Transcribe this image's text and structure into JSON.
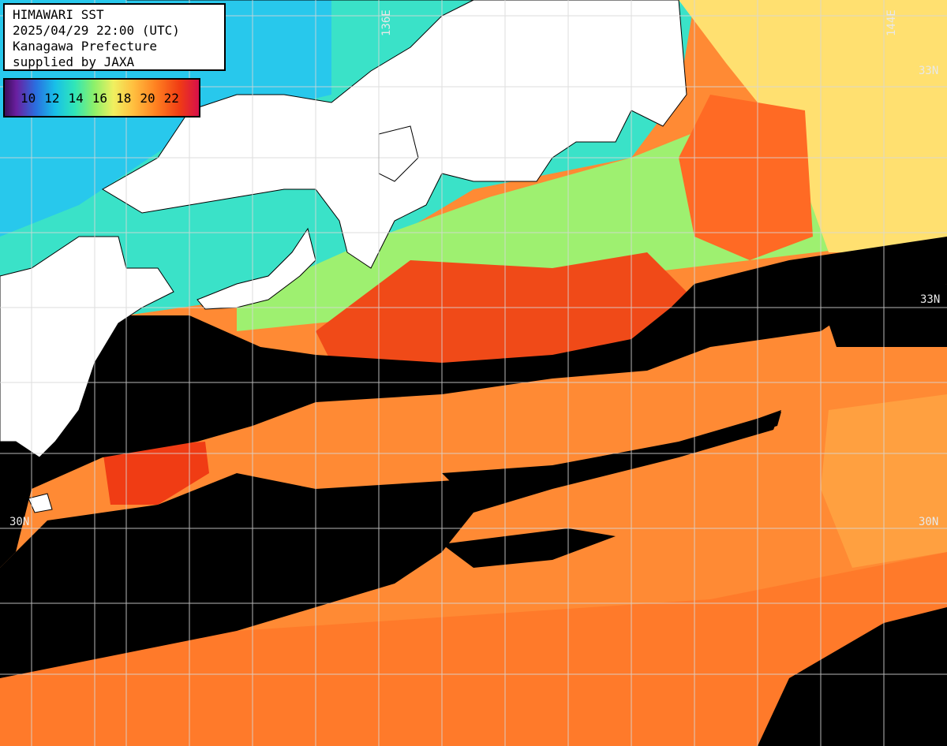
{
  "info": {
    "title": "HIMAWARI SST",
    "datetime": "2025/04/29 22:00 (UTC)",
    "prefecture": "Kanagawa Prefecture",
    "supplier": "supplied by JAXA"
  },
  "legend": {
    "ticks": [
      "10",
      "12",
      "14",
      "16",
      "18",
      "20",
      "22"
    ]
  },
  "grid": {
    "lon_labels": [
      "136E",
      "144E"
    ],
    "lat_labels": [
      "33N",
      "33N",
      "30N",
      "30N"
    ]
  },
  "colors": {
    "land": "#ffffff",
    "cloud": "#000000",
    "grid": "#d8d8d8"
  }
}
